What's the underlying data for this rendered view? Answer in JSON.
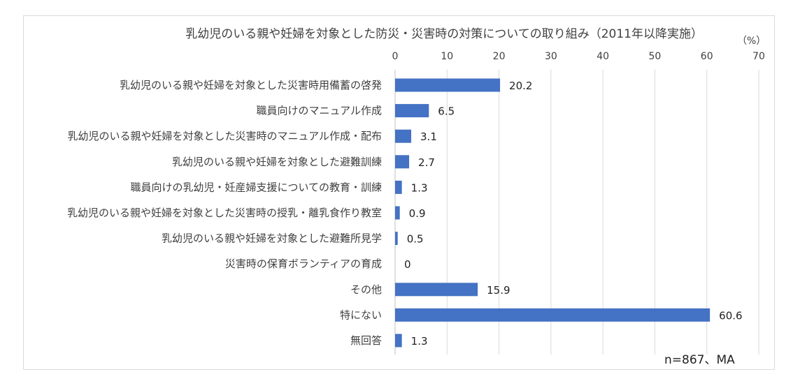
{
  "chart_data": {
    "type": "bar",
    "orientation": "horizontal",
    "title": "乳幼児のいる親や妊婦を対象とした防災・災害時の対策についての取り組み（2011年以降実施）",
    "unit_label": "（%）",
    "note": "n=867、MA",
    "xlim": [
      0,
      70
    ],
    "ticks": [
      0,
      10,
      20,
      30,
      40,
      50,
      60,
      70
    ],
    "grid": true,
    "bar_color": "#4472c4",
    "categories": [
      "乳幼児のいる親や妊婦を対象とした災害時用備蓄の啓発",
      "職員向けのマニュアル作成",
      "乳幼児のいる親や妊婦を対象とした災害時のマニュアル作成・配布",
      "乳幼児のいる親や妊婦を対象とした避難訓練",
      "職員向けの乳幼児・妊産婦支援についての教育・訓練",
      "乳幼児のいる親や妊婦を対象とした災害時の授乳・離乳食作り教室",
      "乳幼児のいる親や妊婦を対象とした避難所見学",
      "災害時の保育ボランティアの育成",
      "その他",
      "特にない",
      "無回答"
    ],
    "values": [
      20.2,
      6.5,
      3.1,
      2.7,
      1.3,
      0.9,
      0.5,
      0,
      15.9,
      60.6,
      1.3
    ]
  }
}
